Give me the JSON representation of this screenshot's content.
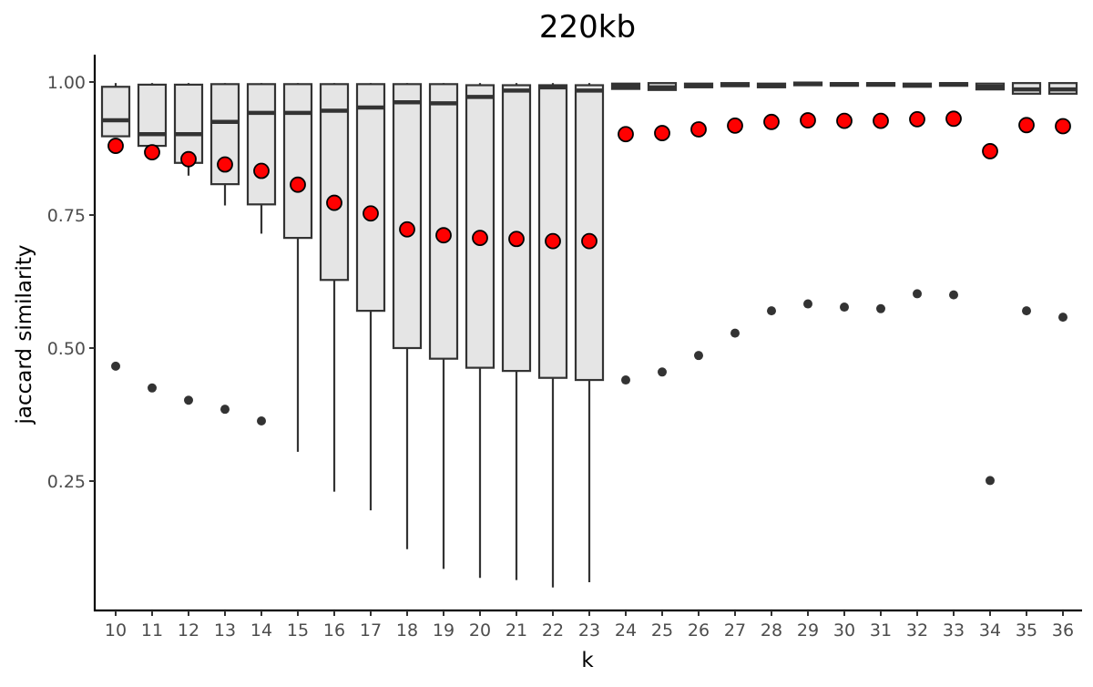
{
  "chart_data": {
    "type": "box",
    "title": "220kb",
    "xlabel": "k",
    "ylabel": "jaccard similarity",
    "ylim": [
      0.0,
      1.035
    ],
    "yticks": [
      0.25,
      0.5,
      0.75,
      1.0
    ],
    "ytick_labels": [
      "0.25",
      "0.50",
      "0.75",
      "1.00"
    ],
    "categories": [
      "10",
      "11",
      "12",
      "13",
      "14",
      "15",
      "16",
      "17",
      "18",
      "19",
      "20",
      "21",
      "22",
      "23",
      "24",
      "25",
      "26",
      "27",
      "28",
      "29",
      "30",
      "31",
      "32",
      "33",
      "34",
      "35",
      "36"
    ],
    "boxes": [
      {
        "k": "10",
        "lower": 0.898,
        "q1": 0.898,
        "median": 0.928,
        "q3": 0.991,
        "upper": 0.998
      },
      {
        "k": "11",
        "lower": 0.88,
        "q1": 0.88,
        "median": 0.902,
        "q3": 0.995,
        "upper": 0.998
      },
      {
        "k": "12",
        "lower": 0.824,
        "q1": 0.848,
        "median": 0.902,
        "q3": 0.995,
        "upper": 0.998
      },
      {
        "k": "13",
        "lower": 0.768,
        "q1": 0.808,
        "median": 0.925,
        "q3": 0.996,
        "upper": 0.998
      },
      {
        "k": "14",
        "lower": 0.715,
        "q1": 0.77,
        "median": 0.942,
        "q3": 0.996,
        "upper": 0.998
      },
      {
        "k": "15",
        "lower": 0.305,
        "q1": 0.707,
        "median": 0.942,
        "q3": 0.996,
        "upper": 0.998
      },
      {
        "k": "16",
        "lower": 0.23,
        "q1": 0.628,
        "median": 0.946,
        "q3": 0.996,
        "upper": 0.998
      },
      {
        "k": "17",
        "lower": 0.195,
        "q1": 0.57,
        "median": 0.952,
        "q3": 0.996,
        "upper": 0.998
      },
      {
        "k": "18",
        "lower": 0.122,
        "q1": 0.5,
        "median": 0.962,
        "q3": 0.996,
        "upper": 0.998
      },
      {
        "k": "19",
        "lower": 0.085,
        "q1": 0.48,
        "median": 0.96,
        "q3": 0.996,
        "upper": 0.998
      },
      {
        "k": "20",
        "lower": 0.068,
        "q1": 0.463,
        "median": 0.972,
        "q3": 0.994,
        "upper": 0.998
      },
      {
        "k": "21",
        "lower": 0.064,
        "q1": 0.457,
        "median": 0.984,
        "q3": 0.994,
        "upper": 0.998
      },
      {
        "k": "22",
        "lower": 0.05,
        "q1": 0.444,
        "median": 0.99,
        "q3": 0.994,
        "upper": 0.998
      },
      {
        "k": "23",
        "lower": 0.06,
        "q1": 0.44,
        "median": 0.984,
        "q3": 0.994,
        "upper": 0.998
      },
      {
        "k": "24",
        "lower": 0.987,
        "q1": 0.987,
        "median": 0.992,
        "q3": 0.997,
        "upper": 0.998
      },
      {
        "k": "25",
        "lower": 0.985,
        "q1": 0.985,
        "median": 0.99,
        "q3": 0.998,
        "upper": 0.998
      },
      {
        "k": "26",
        "lower": 0.99,
        "q1": 0.99,
        "median": 0.993,
        "q3": 0.997,
        "upper": 0.998
      },
      {
        "k": "27",
        "lower": 0.992,
        "q1": 0.992,
        "median": 0.995,
        "q3": 0.998,
        "upper": 0.998
      },
      {
        "k": "28",
        "lower": 0.99,
        "q1": 0.99,
        "median": 0.994,
        "q3": 0.997,
        "upper": 0.998
      },
      {
        "k": "29",
        "lower": 0.995,
        "q1": 0.995,
        "median": 0.997,
        "q3": 0.999,
        "upper": 0.999
      },
      {
        "k": "30",
        "lower": 0.994,
        "q1": 0.994,
        "median": 0.996,
        "q3": 0.998,
        "upper": 0.998
      },
      {
        "k": "31",
        "lower": 0.994,
        "q1": 0.994,
        "median": 0.996,
        "q3": 0.998,
        "upper": 0.998
      },
      {
        "k": "32",
        "lower": 0.991,
        "q1": 0.991,
        "median": 0.994,
        "q3": 0.997,
        "upper": 0.998
      },
      {
        "k": "33",
        "lower": 0.994,
        "q1": 0.994,
        "median": 0.996,
        "q3": 0.998,
        "upper": 0.998
      },
      {
        "k": "34",
        "lower": 0.986,
        "q1": 0.986,
        "median": 0.991,
        "q3": 0.997,
        "upper": 0.998
      },
      {
        "k": "35",
        "lower": 0.978,
        "q1": 0.978,
        "median": 0.986,
        "q3": 0.998,
        "upper": 0.998
      },
      {
        "k": "36",
        "lower": 0.978,
        "q1": 0.978,
        "median": 0.986,
        "q3": 0.998,
        "upper": 0.998
      }
    ],
    "outliers": [
      {
        "k": "10",
        "y": 0.466
      },
      {
        "k": "11",
        "y": 0.425
      },
      {
        "k": "12",
        "y": 0.402
      },
      {
        "k": "13",
        "y": 0.385
      },
      {
        "k": "14",
        "y": 0.363
      },
      {
        "k": "24",
        "y": 0.44
      },
      {
        "k": "25",
        "y": 0.455
      },
      {
        "k": "26",
        "y": 0.486
      },
      {
        "k": "27",
        "y": 0.528
      },
      {
        "k": "28",
        "y": 0.57
      },
      {
        "k": "29",
        "y": 0.583
      },
      {
        "k": "30",
        "y": 0.577
      },
      {
        "k": "31",
        "y": 0.574
      },
      {
        "k": "32",
        "y": 0.602
      },
      {
        "k": "33",
        "y": 0.6
      },
      {
        "k": "34",
        "y": 0.251
      },
      {
        "k": "35",
        "y": 0.57
      },
      {
        "k": "36",
        "y": 0.558
      }
    ],
    "means": [
      0.88,
      0.868,
      0.855,
      0.845,
      0.833,
      0.807,
      0.773,
      0.753,
      0.723,
      0.712,
      0.707,
      0.705,
      0.701,
      0.701,
      0.902,
      0.904,
      0.911,
      0.918,
      0.925,
      0.928,
      0.927,
      0.927,
      0.93,
      0.931,
      0.87,
      0.919,
      0.917
    ],
    "colors": {
      "box_fill": "#e5e5e5",
      "box_stroke": "#333333",
      "mean_fill": "#ff0000",
      "mean_stroke": "#000000",
      "outlier": "#333333",
      "axis": "#000000",
      "tick_label": "#4d4d4d"
    },
    "grid": false,
    "legend": "none"
  }
}
